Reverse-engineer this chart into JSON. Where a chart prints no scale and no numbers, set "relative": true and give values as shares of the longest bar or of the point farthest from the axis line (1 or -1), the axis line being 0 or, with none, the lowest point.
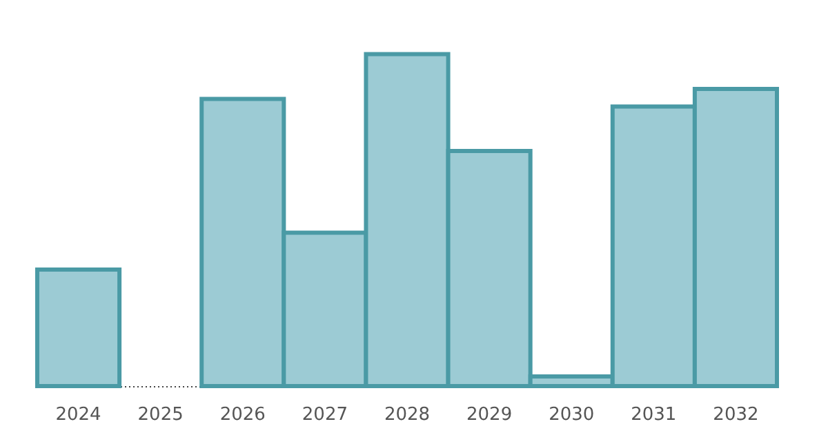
{
  "chart_data": {
    "type": "bar",
    "relative": true,
    "categories": [
      "2024",
      "2025",
      "2026",
      "2027",
      "2028",
      "2029",
      "2030",
      "2031",
      "2032"
    ],
    "series": [
      {
        "color": "#9ccbd4",
        "values": [
          0.351,
          0,
          0.865,
          0.462,
          1,
          0.708,
          0.029,
          0.842,
          0.895
        ]
      }
    ]
  }
}
